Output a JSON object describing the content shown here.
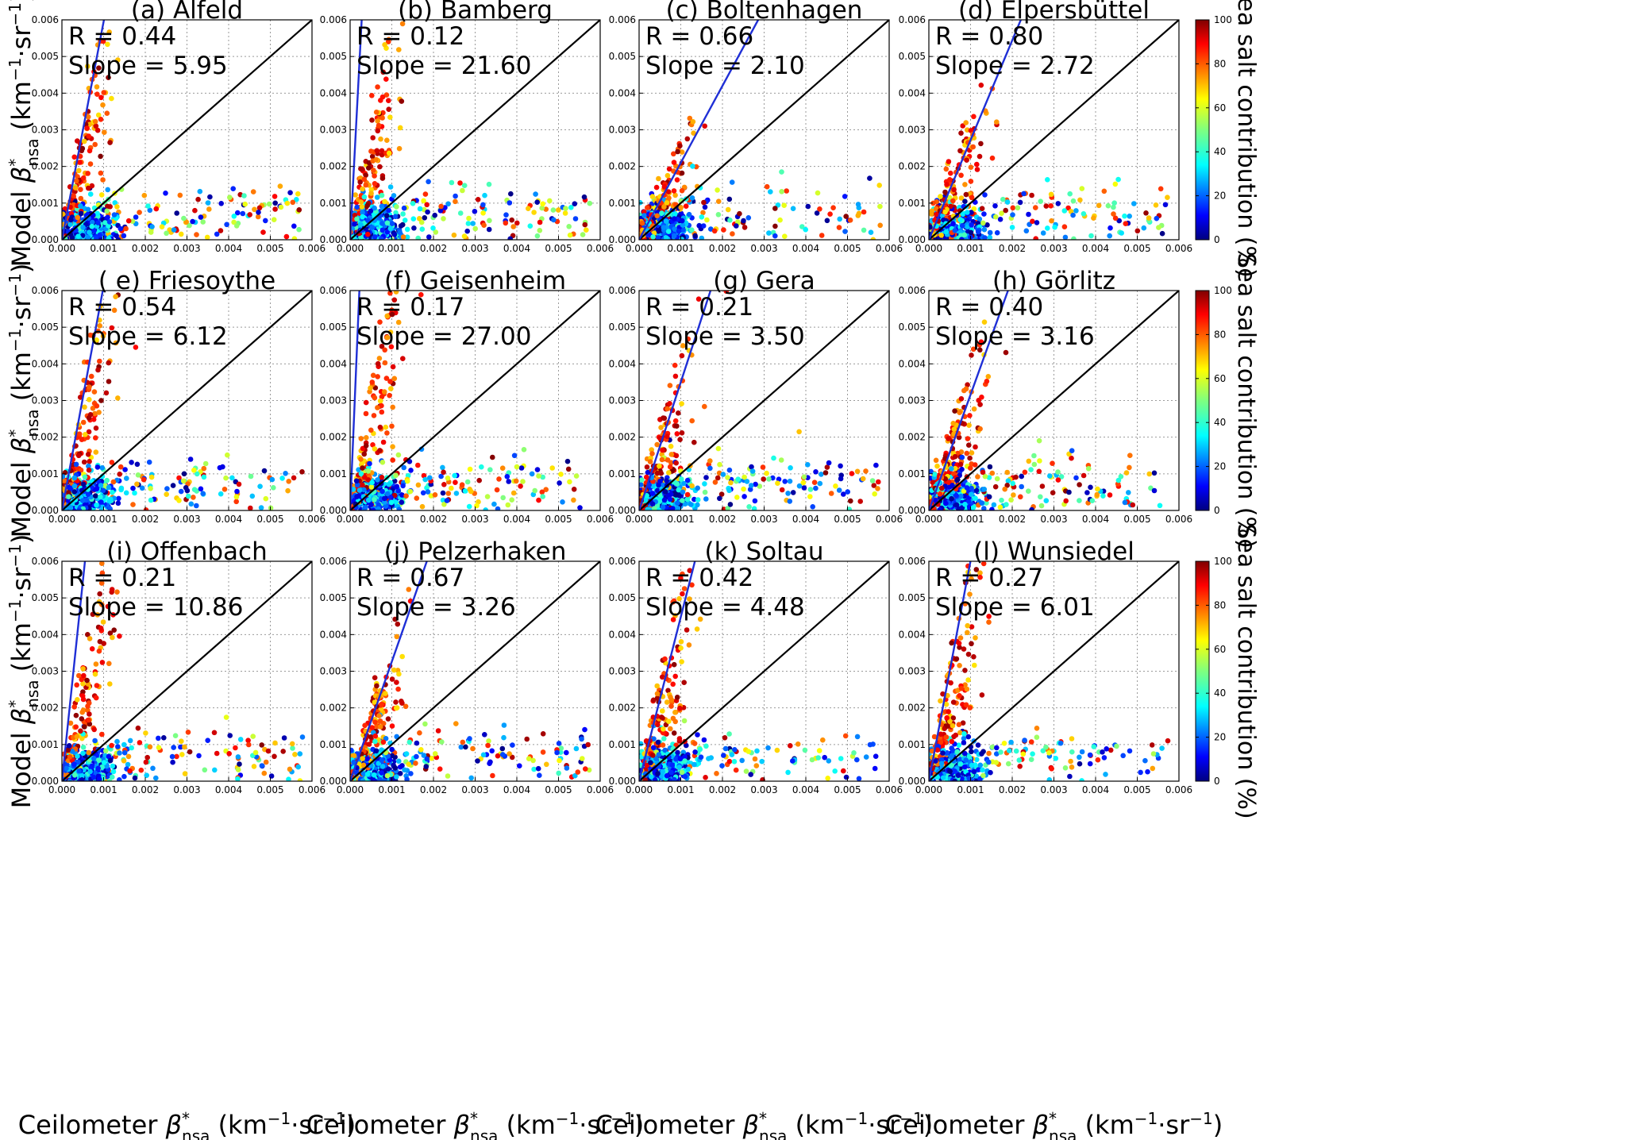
{
  "figure": {
    "ylabel": "Model β*nsa (km⁻¹·sr⁻¹)",
    "xlabel": "Ceilometer β*nsa (km⁻¹·sr⁻¹)",
    "ylabel_parts": {
      "pre": "Model ",
      "sym": "β",
      "sup": "*",
      "sub": "nsa",
      "unit": " (km",
      "unit_sup": "−1",
      "unit_mid": "·sr",
      "unit_sup2": "−1",
      "unit_end": ")"
    },
    "xlabel_parts": {
      "pre": "Ceilometer ",
      "sym": "β",
      "sup": "*",
      "sub": "nsa",
      "unit": " (km",
      "unit_sup": "−1",
      "unit_mid": "·sr",
      "unit_sup2": "−1",
      "unit_end": ")"
    }
  },
  "colorbar": {
    "label": "Sea salt contribution (%)",
    "ticks": [
      "0",
      "20",
      "40",
      "60",
      "80",
      "100"
    ],
    "colormap": "jet",
    "range": [
      0,
      100
    ]
  },
  "chart_data": [
    {
      "type": "scatter",
      "title": "(a) Alfeld",
      "stats": {
        "r": "R = 0.44",
        "slope": "Slope = 5.95"
      },
      "slope_value": 5.95,
      "xlim": [
        0,
        0.006
      ],
      "ylim": [
        0,
        0.006
      ],
      "grid": true,
      "one_to_one_line": true
    },
    {
      "type": "scatter",
      "title": "(b) Bamberg",
      "stats": {
        "r": "R = 0.12",
        "slope": "Slope = 21.60"
      },
      "slope_value": 21.6,
      "xlim": [
        0,
        0.006
      ],
      "ylim": [
        0,
        0.006
      ],
      "grid": true,
      "one_to_one_line": true
    },
    {
      "type": "scatter",
      "title": "(c) Boltenhagen",
      "stats": {
        "r": "R = 0.66",
        "slope": "Slope = 2.10"
      },
      "slope_value": 2.1,
      "xlim": [
        0,
        0.006
      ],
      "ylim": [
        0,
        0.006
      ],
      "grid": true,
      "one_to_one_line": true
    },
    {
      "type": "scatter",
      "title": "(d) Elpersbüttel",
      "stats": {
        "r": "R = 0.80",
        "slope": "Slope = 2.72"
      },
      "slope_value": 2.72,
      "xlim": [
        0,
        0.006
      ],
      "ylim": [
        0,
        0.006
      ],
      "grid": true,
      "one_to_one_line": true
    },
    {
      "type": "scatter",
      "title": "( e) Friesoythe",
      "stats": {
        "r": "R = 0.54",
        "slope": "Slope = 6.12"
      },
      "slope_value": 6.12,
      "xlim": [
        0,
        0.006
      ],
      "ylim": [
        0,
        0.006
      ],
      "grid": true,
      "one_to_one_line": true
    },
    {
      "type": "scatter",
      "title": "(f) Geisenheim",
      "stats": {
        "r": "R = 0.17",
        "slope": "Slope = 27.00"
      },
      "slope_value": 27.0,
      "xlim": [
        0,
        0.006
      ],
      "ylim": [
        0,
        0.006
      ],
      "grid": true,
      "one_to_one_line": true
    },
    {
      "type": "scatter",
      "title": "(g) Gera",
      "stats": {
        "r": "R = 0.21",
        "slope": "Slope = 3.50"
      },
      "slope_value": 3.5,
      "xlim": [
        0,
        0.006
      ],
      "ylim": [
        0,
        0.006
      ],
      "grid": true,
      "one_to_one_line": true
    },
    {
      "type": "scatter",
      "title": "(h) Görlitz",
      "stats": {
        "r": "R = 0.40",
        "slope": "Slope = 3.16"
      },
      "slope_value": 3.16,
      "xlim": [
        0,
        0.006
      ],
      "ylim": [
        0,
        0.006
      ],
      "grid": true,
      "one_to_one_line": true
    },
    {
      "type": "scatter",
      "title": "(i) Offenbach",
      "stats": {
        "r": "R = 0.21",
        "slope": "Slope = 10.86"
      },
      "slope_value": 10.86,
      "xlim": [
        0,
        0.006
      ],
      "ylim": [
        0,
        0.006
      ],
      "grid": true,
      "one_to_one_line": true
    },
    {
      "type": "scatter",
      "title": "(j) Pelzerhaken",
      "stats": {
        "r": "R = 0.67",
        "slope": "Slope = 3.26"
      },
      "slope_value": 3.26,
      "xlim": [
        0,
        0.006
      ],
      "ylim": [
        0,
        0.006
      ],
      "grid": true,
      "one_to_one_line": true
    },
    {
      "type": "scatter",
      "title": "(k) Soltau",
      "stats": {
        "r": "R = 0.42",
        "slope": "Slope = 4.48"
      },
      "slope_value": 4.48,
      "xlim": [
        0,
        0.006
      ],
      "ylim": [
        0,
        0.006
      ],
      "grid": true,
      "one_to_one_line": true
    },
    {
      "type": "scatter",
      "title": "(l) Wunsiedel",
      "stats": {
        "r": "R = 0.27",
        "slope": "Slope = 6.01"
      },
      "slope_value": 6.01,
      "xlim": [
        0,
        0.006
      ],
      "ylim": [
        0,
        0.006
      ],
      "grid": true,
      "one_to_one_line": true
    }
  ],
  "axis_ticks": [
    "0.000",
    "0.001",
    "0.002",
    "0.003",
    "0.004",
    "0.005",
    "0.006"
  ]
}
